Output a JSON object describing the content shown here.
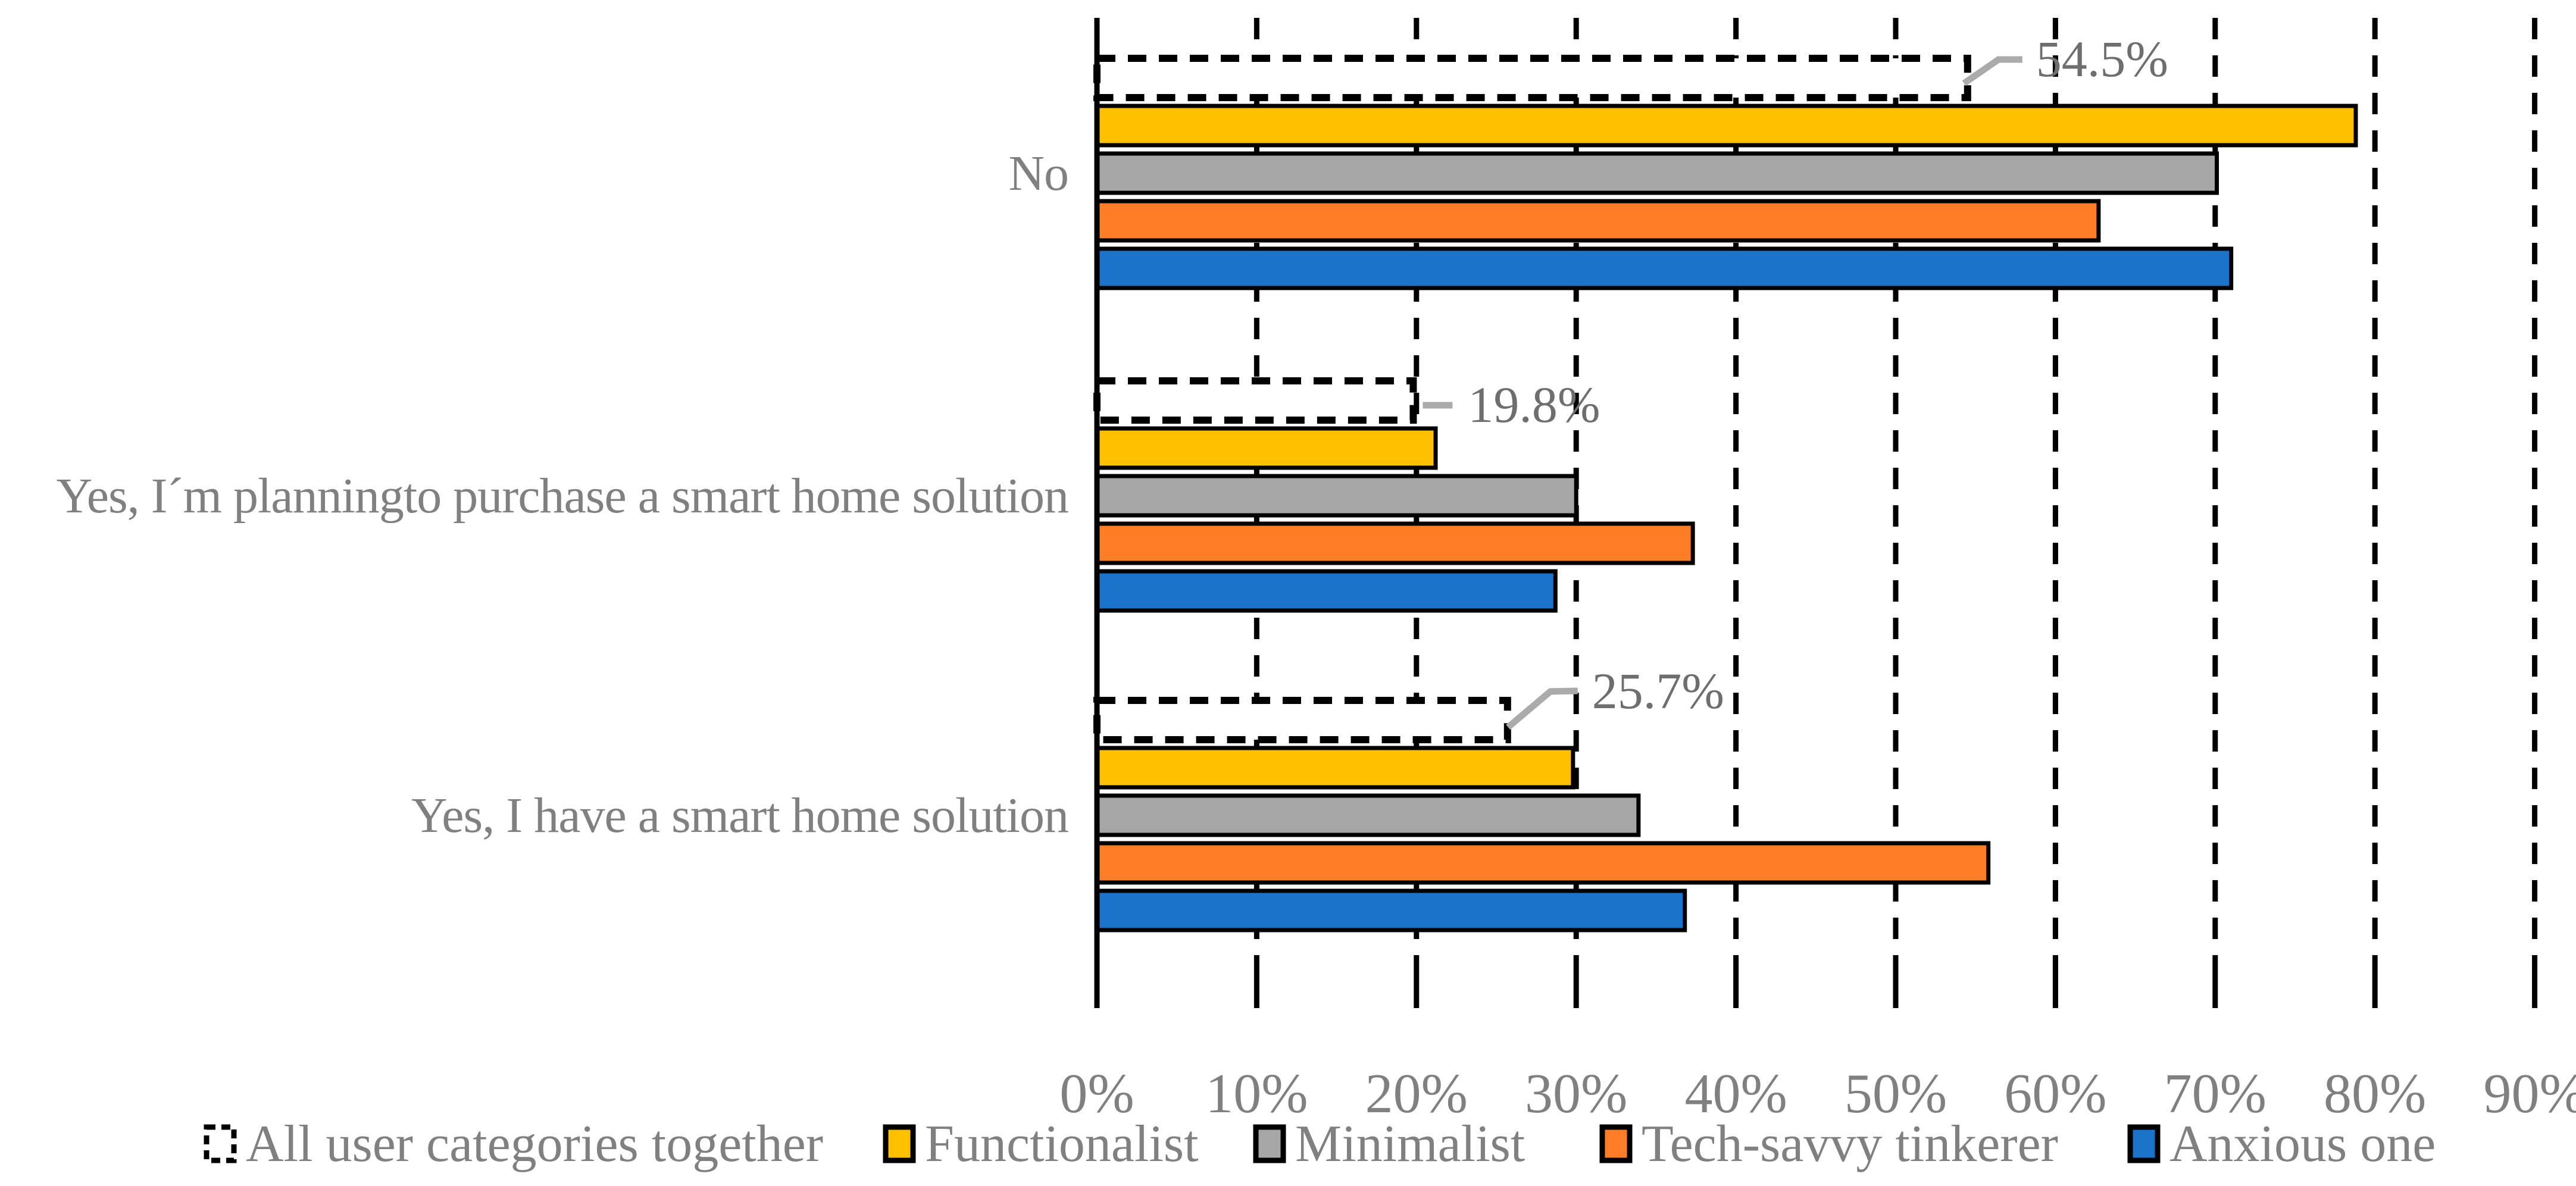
{
  "chart_data": {
    "type": "bar",
    "orientation": "horizontal",
    "title": "",
    "categories": [
      "No",
      "Yes, I´m planningto purchase a smart home solution",
      "Yes, I have a smart home solution"
    ],
    "series": [
      {
        "name": "All user categories together",
        "swatch": "dashed-outline",
        "fill": "#FFFFFF",
        "stroke": "#000000",
        "values": [
          54.5,
          19.8,
          25.7
        ],
        "data_labels": [
          "54.5%",
          "19.8%",
          "25.7%"
        ]
      },
      {
        "name": "Functionalist",
        "swatch": "solid",
        "fill": "#FFC000",
        "stroke": "#000000",
        "values": [
          78.8,
          21.2,
          29.8
        ]
      },
      {
        "name": "Minimalist",
        "swatch": "solid",
        "fill": "#A6A6A6",
        "stroke": "#000000",
        "values": [
          70.1,
          30.0,
          33.9
        ]
      },
      {
        "name": "Tech-savvy tinkerer",
        "swatch": "solid",
        "fill": "#FD7E27",
        "stroke": "#000000",
        "values": [
          62.7,
          37.3,
          55.8
        ]
      },
      {
        "name": "Anxious one",
        "swatch": "solid",
        "fill": "#1B74C9",
        "stroke": "#000000",
        "values": [
          71.0,
          28.7,
          36.8
        ]
      }
    ],
    "x_ticks": [
      "0%",
      "10%",
      "20%",
      "30%",
      "40%",
      "50%",
      "60%",
      "70%",
      "80%",
      "90%"
    ],
    "xlim": [
      0,
      90
    ],
    "grid": "vertical-dashed",
    "legend_position": "bottom",
    "colors": {
      "axis": "#000000",
      "grid": "#000000",
      "bar_border": "#000000",
      "text": "#808080",
      "callout_text": "#6E6E6E",
      "leader": "#ABABAB",
      "background": "#FFFFFF"
    }
  }
}
